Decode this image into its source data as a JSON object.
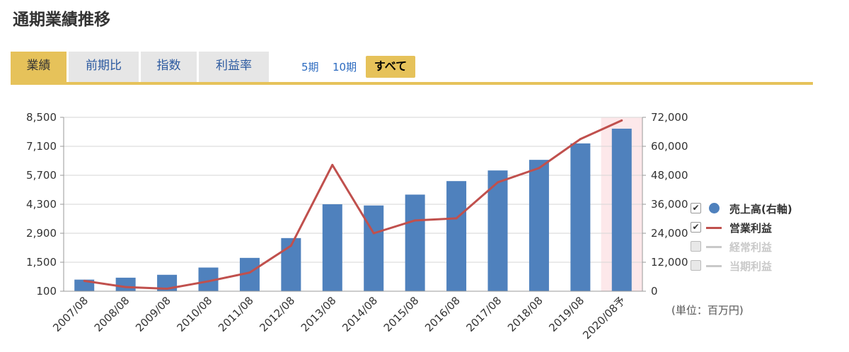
{
  "page": {
    "title": "通期業績推移"
  },
  "tabs": [
    {
      "label": "業績",
      "active": true
    },
    {
      "label": "前期比",
      "active": false
    },
    {
      "label": "指数",
      "active": false
    },
    {
      "label": "利益率",
      "active": false
    }
  ],
  "period": {
    "five": "5期",
    "ten": "10期",
    "all": "すべて"
  },
  "unit_label": "(単位：百万円)",
  "colors": {
    "bar": "#4f81bd",
    "line": "#c0504d",
    "accent": "#e6c25a",
    "forecast_bg": "#fde8ea",
    "disabled": "#c9c9c9"
  },
  "legend": [
    {
      "label": "売上高(右軸)",
      "checked": true,
      "marker": "dot",
      "color": "#4f81bd"
    },
    {
      "label": "営業利益",
      "checked": true,
      "marker": "line",
      "color": "#c0504d"
    },
    {
      "label": "経常利益",
      "checked": false,
      "marker": "line",
      "color": "#c9c9c9"
    },
    {
      "label": "当期利益",
      "checked": false,
      "marker": "line",
      "color": "#c9c9c9"
    }
  ],
  "chart_data": {
    "type": "bar",
    "categories": [
      "2007/08",
      "2008/08",
      "2009/08",
      "2010/08",
      "2011/08",
      "2012/08",
      "2013/08",
      "2014/08",
      "2015/08",
      "2016/08",
      "2017/08",
      "2018/08",
      "2019/08",
      "2020/08予"
    ],
    "forecast_index": 13,
    "left_axis": {
      "ticks": [
        "8,500",
        "7,100",
        "5,700",
        "4,300",
        "2,900",
        "1,500",
        "100"
      ],
      "min": 100,
      "max": 8500
    },
    "right_axis": {
      "ticks": [
        "72,000",
        "60,000",
        "48,000",
        "36,000",
        "24,000",
        "12,000",
        "0"
      ],
      "min": 0,
      "max": 72000
    },
    "grid": true,
    "legend_position": "right",
    "series": [
      {
        "name": "売上高(右軸)",
        "type": "bar",
        "axis": "right",
        "values": [
          4800,
          5600,
          6800,
          9800,
          13800,
          22000,
          36000,
          35500,
          40000,
          45600,
          50000,
          54400,
          61200,
          67300
        ]
      },
      {
        "name": "営業利益",
        "type": "line",
        "axis": "left",
        "values": [
          600,
          300,
          220,
          580,
          1000,
          2300,
          6200,
          2900,
          3520,
          3620,
          5360,
          6050,
          7450,
          8350
        ]
      }
    ]
  }
}
